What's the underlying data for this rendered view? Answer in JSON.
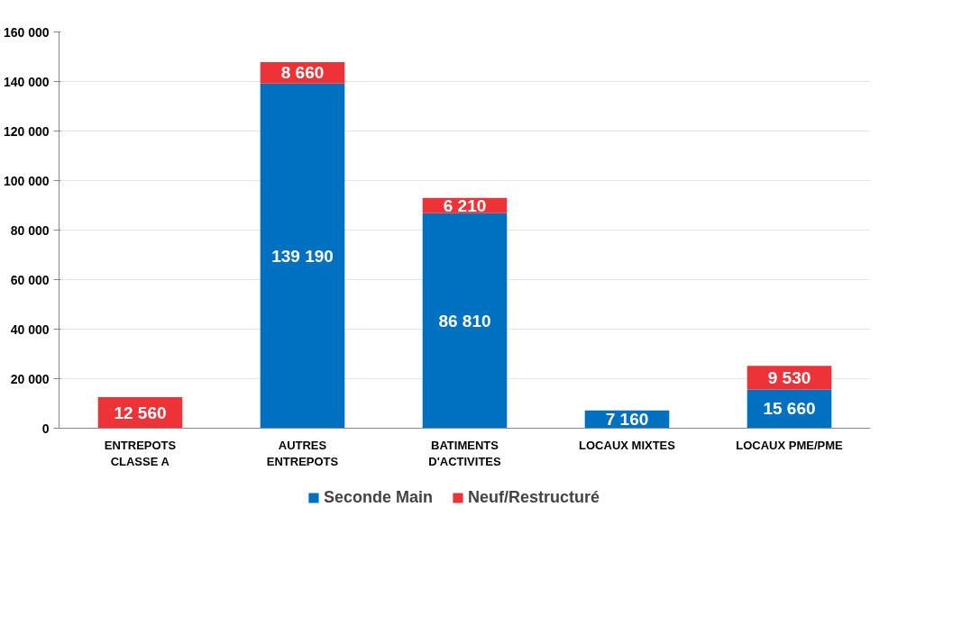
{
  "chart_data": {
    "type": "bar",
    "stacked": true,
    "categories": [
      "ENTREPOTS\nCLASSE A",
      "AUTRES\nENTREPOTS",
      "BATIMENTS\nD'ACTIVITES",
      "LOCAUX MIXTES",
      "LOCAUX PME/PME"
    ],
    "series": [
      {
        "name": "Seconde Main",
        "color": "#0070c0",
        "values": [
          null,
          139190,
          86810,
          7160,
          15660
        ],
        "value_labels": [
          null,
          "139 190",
          "86 810",
          "7 160",
          "15 660"
        ]
      },
      {
        "name": "Neuf/Restructuré",
        "color": "#ee3338",
        "values": [
          12560,
          8660,
          6210,
          null,
          9530
        ],
        "value_labels": [
          "12 560",
          "8 660",
          "6 210",
          null,
          "9 530"
        ]
      }
    ],
    "ylim": [
      0,
      160000
    ],
    "yticks": [
      0,
      {
        "value": 20000,
        "label": "20 000"
      },
      {
        "value": 40000,
        "label": "40 000"
      },
      {
        "value": 60000,
        "label": "60 000"
      },
      {
        "value": 80000,
        "label": "80 000"
      },
      {
        "value": 100000,
        "label": "100 000"
      },
      {
        "value": 120000,
        "label": "120 000"
      },
      {
        "value": 140000,
        "label": "140 000"
      },
      {
        "value": 160000,
        "label": "160 000"
      }
    ],
    "grid": "y",
    "legend": "bottom"
  }
}
